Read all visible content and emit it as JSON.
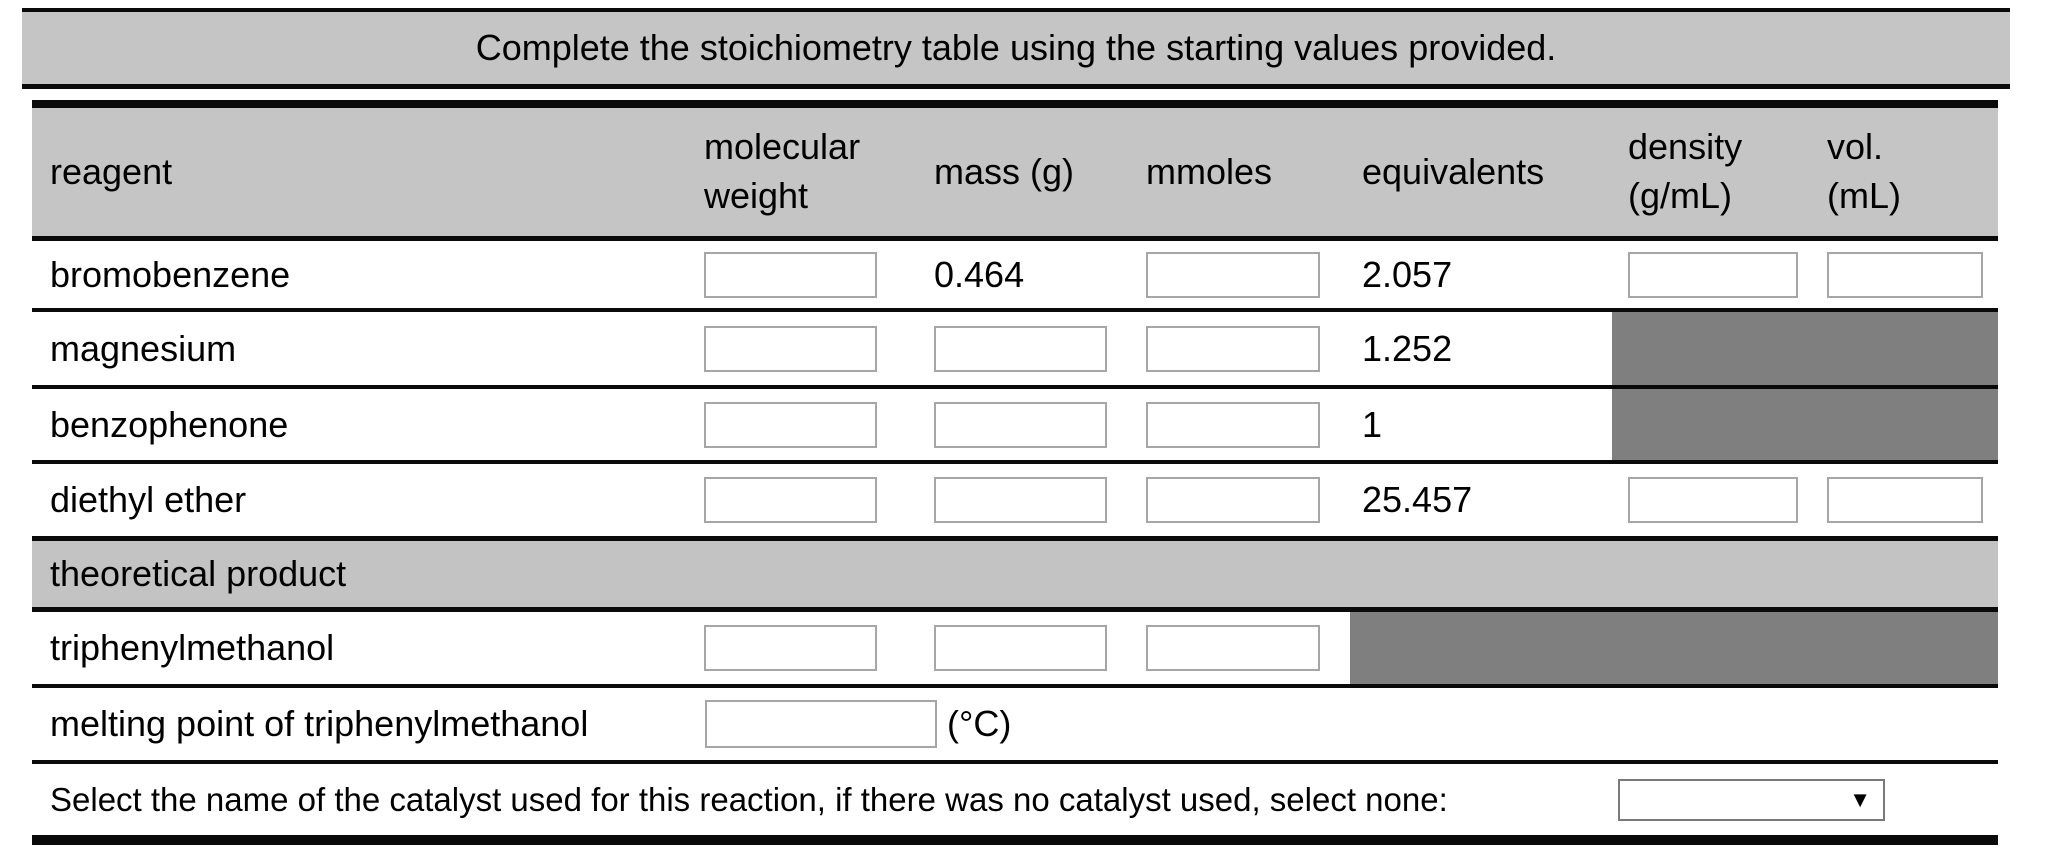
{
  "banner": {
    "text": "Complete the stoichiometry table using the starting values provided."
  },
  "table": {
    "columns": {
      "reagent": "reagent",
      "molecular_weight": [
        "molecular",
        "weight"
      ],
      "mass": "mass (g)",
      "mmoles": "mmoles",
      "equivalents": "equivalents",
      "density": [
        "density",
        "(g/mL)"
      ],
      "volume": [
        "vol.",
        "(mL)"
      ]
    },
    "reagent_rows": [
      {
        "name": "bromobenzene",
        "molecular_weight_input": "",
        "mass_text": "0.464",
        "mmoles_input": "",
        "equivalents_text": "2.057",
        "density_input": "",
        "volume_input": ""
      },
      {
        "name": "magnesium",
        "molecular_weight_input": "",
        "mass_input": "",
        "mmoles_input": "",
        "equivalents_text": "1.252"
      },
      {
        "name": "benzophenone",
        "molecular_weight_input": "",
        "mass_input": "",
        "mmoles_input": "",
        "equivalents_text": "1"
      },
      {
        "name": "diethyl ether",
        "molecular_weight_input": "",
        "mass_input": "",
        "mmoles_input": "",
        "equivalents_text": "25.457",
        "density_input": "",
        "volume_input": ""
      }
    ],
    "section_header": "theoretical product",
    "product_row": {
      "name": "triphenylmethanol",
      "molecular_weight_input": "",
      "mass_input": "",
      "mmoles_input": ""
    },
    "melting_point_row": {
      "label": "melting point of triphenylmethanol",
      "value_input": "",
      "unit": "(°C)"
    },
    "catalyst_row": {
      "label": "Select the name of the catalyst used for this reaction, if there was no catalyst used, select none:",
      "selected_value": "",
      "dropdown_arrow": "▼"
    }
  },
  "colors": {
    "banner_bg": "#c5c5c5",
    "header_bg": "#c5c5c5",
    "section_bg": "#c3c3c3",
    "blocked_cell_bg": "#7f7f7f",
    "border_black": "#0a0a0a",
    "input_border": "#a6a6a6"
  }
}
